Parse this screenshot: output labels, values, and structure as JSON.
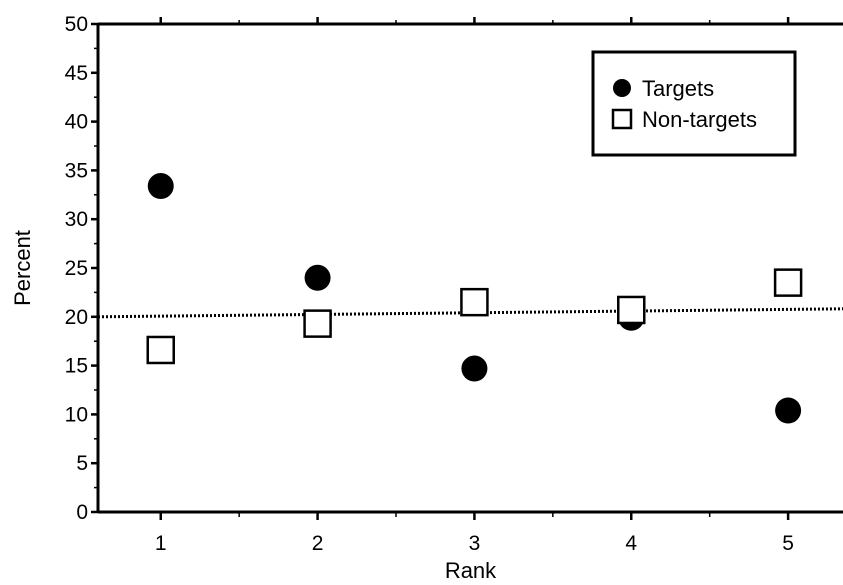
{
  "chart_data": {
    "type": "scatter",
    "xlabel": "Rank",
    "ylabel": "Percent",
    "xlim": [
      0.6,
      5.35
    ],
    "ylim": [
      0,
      50
    ],
    "x_ticks": [
      1,
      2,
      3,
      4,
      5
    ],
    "y_ticks": [
      0,
      5,
      10,
      15,
      20,
      25,
      30,
      35,
      40,
      45,
      50
    ],
    "reference_line": {
      "y": 20,
      "style": "dotted"
    },
    "legend_position": "top-right",
    "series": [
      {
        "name": "Targets",
        "marker": "filled-circle",
        "x": [
          1,
          2,
          3,
          4,
          5
        ],
        "y": [
          33.4,
          24.0,
          14.7,
          19.9,
          10.4
        ]
      },
      {
        "name": "Non-targets",
        "marker": "open-square",
        "x": [
          1,
          2,
          3,
          4,
          5
        ],
        "y": [
          16.6,
          19.3,
          21.5,
          20.7,
          23.5
        ]
      }
    ]
  }
}
